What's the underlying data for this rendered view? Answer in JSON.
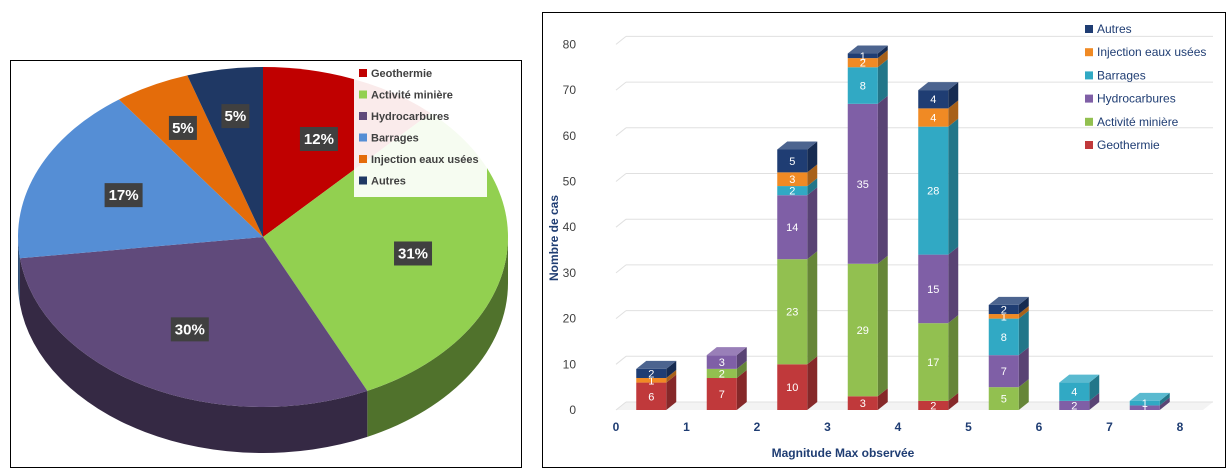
{
  "chart_data": [
    {
      "type": "pie",
      "title": "",
      "slices": [
        {
          "label": "Geothermie",
          "value": 12,
          "display": "12%",
          "color": "#c00000"
        },
        {
          "label": "Activité minière",
          "value": 31,
          "display": "31%",
          "color": "#92d050"
        },
        {
          "label": "Hydrocarbures",
          "value": 30,
          "display": "30%",
          "color": "#604a7b"
        },
        {
          "label": "Barrages",
          "value": 17,
          "display": "17%",
          "color": "#558ed5"
        },
        {
          "label": "Injection eaux usées",
          "value": 5,
          "display": "5%",
          "color": "#e46c0a"
        },
        {
          "label": "Autres",
          "value": 5,
          "display": "5%",
          "color": "#1f3864"
        }
      ],
      "legend": {
        "placement": "top-right",
        "items": [
          "Geothermie",
          "Activité minière",
          "Hydrocarbures",
          "Barrages",
          "Injection eaux usées",
          "Autres"
        ]
      }
    },
    {
      "type": "bar",
      "stacked": true,
      "three_d": true,
      "xlabel": "Magnitude  Max observée",
      "ylabel": "Nombre de cas",
      "ylim": [
        0,
        80
      ],
      "yticks": [
        "0",
        "10",
        "20",
        "30",
        "40",
        "50",
        "60",
        "70",
        "80"
      ],
      "xticks": [
        "0",
        "1",
        "2",
        "3",
        "4",
        "5",
        "6",
        "7",
        "8"
      ],
      "categories": [
        "0.5",
        "1.5",
        "2.5",
        "3.5",
        "4.5",
        "5.5",
        "6.5",
        "7.5"
      ],
      "grid": true,
      "legend_placement": "top-right",
      "series": [
        {
          "name": "Geothermie",
          "color": "#c0393b",
          "values": [
            6,
            7,
            10,
            3,
            2,
            null,
            null,
            null
          ]
        },
        {
          "name": "Activité minière",
          "color": "#92c050",
          "values": [
            null,
            2,
            23,
            29,
            17,
            5,
            null,
            null
          ]
        },
        {
          "name": "Hydrocarbures",
          "color": "#7f5fa6",
          "values": [
            null,
            3,
            14,
            35,
            15,
            7,
            2,
            1
          ]
        },
        {
          "name": "Barrages",
          "color": "#31a9c4",
          "values": [
            null,
            null,
            2,
            8,
            28,
            8,
            4,
            1
          ]
        },
        {
          "name": "Injection eaux usées",
          "color": "#f08a24",
          "values": [
            1,
            null,
            3,
            2,
            4,
            1,
            null,
            null
          ]
        },
        {
          "name": "Autres",
          "color": "#1f3d73",
          "values": [
            2,
            null,
            5,
            1,
            4,
            2,
            null,
            null
          ]
        }
      ],
      "legend_order": [
        "Autres",
        "Injection eaux usées",
        "Barrages",
        "Hydrocarbures",
        "Activité minière",
        "Geothermie"
      ]
    }
  ]
}
